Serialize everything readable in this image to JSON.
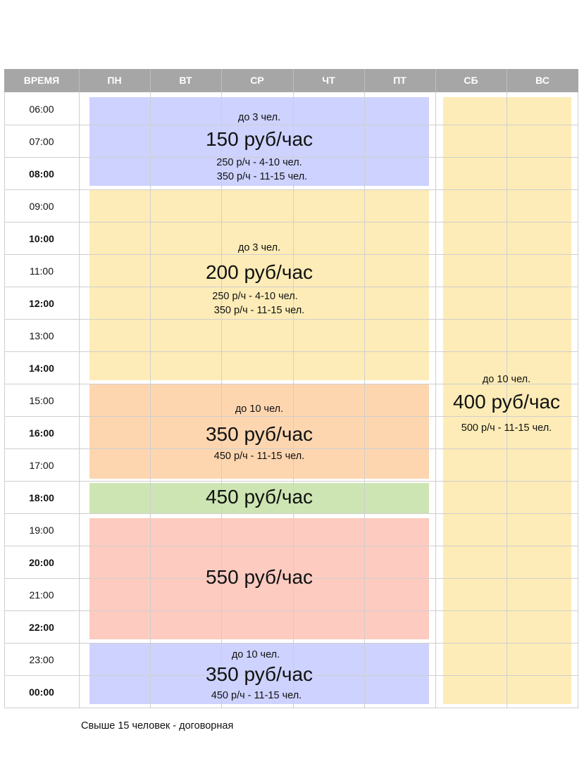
{
  "header": {
    "time": "ВРЕМЯ",
    "days": [
      "ПН",
      "ВТ",
      "СР",
      "ЧТ",
      "ПТ",
      "СБ",
      "ВС"
    ]
  },
  "times": [
    {
      "label": "06:00",
      "bold": false
    },
    {
      "label": "07:00",
      "bold": false
    },
    {
      "label": "08:00",
      "bold": true
    },
    {
      "label": "09:00",
      "bold": false
    },
    {
      "label": "10:00",
      "bold": true
    },
    {
      "label": "11:00",
      "bold": false
    },
    {
      "label": "12:00",
      "bold": true
    },
    {
      "label": "13:00",
      "bold": false
    },
    {
      "label": "14:00",
      "bold": true
    },
    {
      "label": "15:00",
      "bold": false
    },
    {
      "label": "16:00",
      "bold": true
    },
    {
      "label": "17:00",
      "bold": false
    },
    {
      "label": "18:00",
      "bold": true
    },
    {
      "label": "19:00",
      "bold": false
    },
    {
      "label": "20:00",
      "bold": true
    },
    {
      "label": "21:00",
      "bold": false
    },
    {
      "label": "22:00",
      "bold": true
    },
    {
      "label": "23:00",
      "bold": false
    },
    {
      "label": "00:00",
      "bold": true
    }
  ],
  "blocks": {
    "weekday_morning": {
      "color": "#cdd2ff",
      "group": "до 3 чел.",
      "price": "150 руб/час",
      "line1": "250 р/ч - 4-10 чел.",
      "line2": "350 р/ч - 11-15 чел."
    },
    "weekday_day": {
      "color": "#fdecb7",
      "group": "до 3 чел.",
      "price": "200 руб/час",
      "line1": "250 р/ч - 4-10 чел.",
      "line2": "350 р/ч - 11-15 чел."
    },
    "weekday_afternoon": {
      "color": "#fdd6b0",
      "group": "до 10 чел.",
      "price": "350 руб/час",
      "line1": "450 р/ч - 11-15 чел."
    },
    "weekday_18": {
      "color": "#cde5b2",
      "price": "450 руб/час"
    },
    "weekday_evening": {
      "color": "#fecbc0",
      "price": "550 руб/час"
    },
    "weekday_night": {
      "color": "#cdd2ff",
      "group": "до 10 чел.",
      "price": "350 руб/час",
      "line1": "450 р/ч - 11-15 чел."
    },
    "weekend": {
      "color": "#fdecb7",
      "group": "до 10 чел.",
      "price": "400 руб/час",
      "line1": "500 р/ч - 11-15 чел."
    }
  },
  "footer_note": "Свыше 15 человек - договорная"
}
